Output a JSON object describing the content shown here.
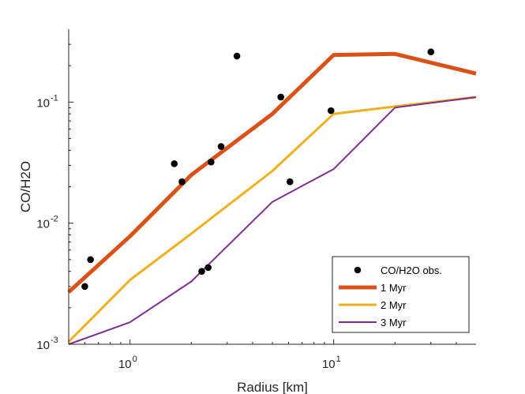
{
  "chart_data": {
    "type": "line",
    "title": "",
    "xlabel": "Radius [km]",
    "ylabel": "CO/H2O",
    "xscale": "log",
    "yscale": "log",
    "xlim": [
      0.5,
      50
    ],
    "ylim": [
      0.001,
      0.4
    ],
    "x_ticks": [
      {
        "value": 1,
        "base": "10",
        "exp": "0"
      },
      {
        "value": 10,
        "base": "10",
        "exp": "1"
      }
    ],
    "y_ticks": [
      {
        "value": 0.001,
        "base": "10",
        "exp": "-3"
      },
      {
        "value": 0.01,
        "base": "10",
        "exp": "-2"
      },
      {
        "value": 0.1,
        "base": "10",
        "exp": "-1"
      }
    ],
    "grid": false,
    "legend_position": "bottom-right",
    "observations": {
      "name": "CO/H2O obs.",
      "color": "#000000",
      "points": [
        {
          "x": 0.6,
          "y": 0.003
        },
        {
          "x": 0.64,
          "y": 0.005
        },
        {
          "x": 1.65,
          "y": 0.031
        },
        {
          "x": 1.8,
          "y": 0.022
        },
        {
          "x": 2.25,
          "y": 0.004
        },
        {
          "x": 2.42,
          "y": 0.0043
        },
        {
          "x": 2.5,
          "y": 0.032
        },
        {
          "x": 2.8,
          "y": 0.043
        },
        {
          "x": 3.35,
          "y": 0.24
        },
        {
          "x": 5.5,
          "y": 0.11
        },
        {
          "x": 6.1,
          "y": 0.022
        },
        {
          "x": 9.7,
          "y": 0.085
        },
        {
          "x": 30,
          "y": 0.26
        }
      ]
    },
    "series": [
      {
        "name": "1 Myr",
        "color": "#D95319",
        "width": 5,
        "x": [
          0.5,
          1,
          2,
          5,
          10,
          20,
          50
        ],
        "y": [
          0.0027,
          0.0078,
          0.025,
          0.08,
          0.245,
          0.25,
          0.172
        ]
      },
      {
        "name": "2 Myr",
        "color": "#EDB120",
        "width": 3,
        "x": [
          0.5,
          1,
          2,
          5,
          10,
          20,
          50
        ],
        "y": [
          0.00105,
          0.0034,
          0.0082,
          0.027,
          0.08,
          0.092,
          0.11
        ]
      },
      {
        "name": "3 Myr",
        "color": "#7E2F8E",
        "width": 2,
        "x": [
          0.5,
          1,
          2,
          5,
          10,
          20,
          50
        ],
        "y": [
          0.001,
          0.00152,
          0.0033,
          0.015,
          0.028,
          0.09,
          0.11
        ]
      }
    ]
  }
}
